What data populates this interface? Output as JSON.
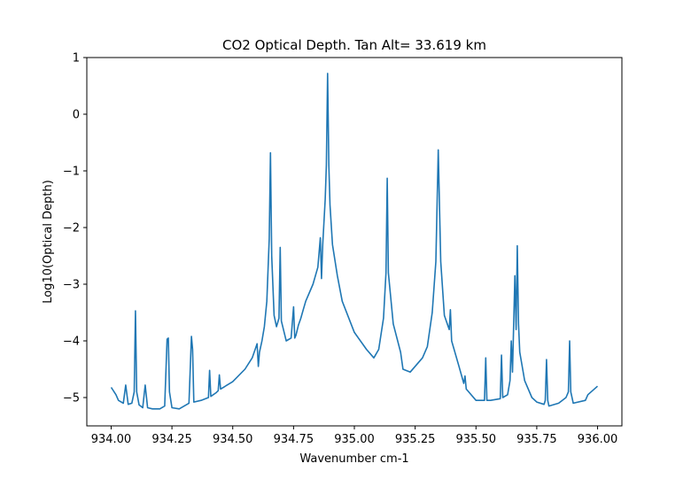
{
  "chart_data": {
    "type": "line",
    "title": "CO2 Optical Depth. Tan Alt= 33.619 km",
    "xlabel": "Wavenumber cm-1",
    "ylabel": "Log10(Optical Depth)",
    "xlim": [
      933.9,
      936.1
    ],
    "ylim": [
      -5.5,
      1.0
    ],
    "xticks": [
      934.0,
      934.25,
      934.5,
      934.75,
      935.0,
      935.25,
      935.5,
      935.75,
      936.0
    ],
    "xtick_labels": [
      "934.00",
      "934.25",
      "934.50",
      "934.75",
      "935.00",
      "935.25",
      "935.50",
      "935.75",
      "936.00"
    ],
    "yticks": [
      1,
      0,
      -1,
      -2,
      -3,
      -4,
      -5
    ],
    "ytick_labels": [
      "1",
      "0",
      "−1",
      "−2",
      "−3",
      "−4",
      "−5"
    ],
    "grid": false,
    "line_color": "#1f77b4",
    "series": [
      {
        "x": [
          934.0,
          934.02,
          934.03,
          934.05,
          934.06,
          934.07,
          934.085,
          934.095,
          934.1,
          934.105,
          934.115,
          934.13,
          934.14,
          934.15,
          934.17,
          934.2,
          934.22,
          934.23,
          934.235,
          934.24,
          934.25,
          934.28,
          934.32,
          934.33,
          934.335,
          934.34,
          934.37,
          934.4,
          934.405,
          934.41,
          934.43,
          934.44,
          934.445,
          934.45,
          934.5,
          934.55,
          934.58,
          934.6,
          934.605,
          934.61,
          934.62,
          934.63,
          934.64,
          934.65,
          934.655,
          934.66,
          934.67,
          934.68,
          934.69,
          934.695,
          934.7,
          934.72,
          934.74,
          934.75,
          934.755,
          934.76,
          934.77,
          934.78,
          934.79,
          934.8,
          934.83,
          934.85,
          934.86,
          934.865,
          934.87,
          934.88,
          934.885,
          934.89,
          934.895,
          934.9,
          934.91,
          934.93,
          934.95,
          935.0,
          935.05,
          935.08,
          935.1,
          935.12,
          935.13,
          935.135,
          935.14,
          935.16,
          935.19,
          935.2,
          935.23,
          935.25,
          935.28,
          935.3,
          935.32,
          935.335,
          935.345,
          935.355,
          935.37,
          935.39,
          935.395,
          935.4,
          935.43,
          935.45,
          935.455,
          935.46,
          935.5,
          935.535,
          935.54,
          935.545,
          935.56,
          935.6,
          935.605,
          935.61,
          935.63,
          935.64,
          935.645,
          935.65,
          935.66,
          935.665,
          935.67,
          935.675,
          935.68,
          935.7,
          935.73,
          935.75,
          935.78,
          935.785,
          935.79,
          935.795,
          935.8,
          935.84,
          935.87,
          935.88,
          935.885,
          935.89,
          935.9,
          935.95,
          935.96,
          936.0
        ],
        "y": [
          -4.82,
          -4.95,
          -5.05,
          -5.1,
          -4.78,
          -5.12,
          -5.1,
          -4.9,
          -3.47,
          -4.9,
          -5.13,
          -5.18,
          -4.78,
          -5.18,
          -5.2,
          -5.2,
          -5.15,
          -3.97,
          -3.95,
          -4.9,
          -5.18,
          -5.2,
          -5.1,
          -3.92,
          -4.15,
          -5.08,
          -5.05,
          -5.0,
          -4.52,
          -4.98,
          -4.92,
          -4.88,
          -4.6,
          -4.85,
          -4.72,
          -4.5,
          -4.3,
          -4.05,
          -4.45,
          -4.2,
          -4.0,
          -3.75,
          -3.3,
          -2.2,
          -0.68,
          -2.5,
          -3.55,
          -3.75,
          -3.6,
          -2.35,
          -3.65,
          -4.0,
          -3.95,
          -3.4,
          -3.95,
          -3.9,
          -3.72,
          -3.6,
          -3.45,
          -3.3,
          -3.0,
          -2.7,
          -2.18,
          -2.9,
          -2.3,
          -1.5,
          -0.9,
          0.72,
          -0.9,
          -1.6,
          -2.3,
          -2.85,
          -3.3,
          -3.85,
          -4.15,
          -4.3,
          -4.15,
          -3.6,
          -2.8,
          -1.13,
          -2.8,
          -3.7,
          -4.2,
          -4.5,
          -4.55,
          -4.45,
          -4.3,
          -4.1,
          -3.5,
          -2.6,
          -0.63,
          -2.6,
          -3.55,
          -3.8,
          -3.45,
          -4.0,
          -4.45,
          -4.75,
          -4.62,
          -4.85,
          -5.05,
          -5.05,
          -4.3,
          -5.05,
          -5.05,
          -5.02,
          -4.25,
          -5.0,
          -4.95,
          -4.7,
          -4.0,
          -4.55,
          -2.85,
          -3.8,
          -2.32,
          -3.7,
          -4.2,
          -4.7,
          -5.0,
          -5.08,
          -5.12,
          -5.05,
          -4.33,
          -5.05,
          -5.15,
          -5.1,
          -5.0,
          -4.9,
          -4.0,
          -4.9,
          -5.1,
          -5.05,
          -4.95,
          -4.8
        ]
      }
    ]
  }
}
